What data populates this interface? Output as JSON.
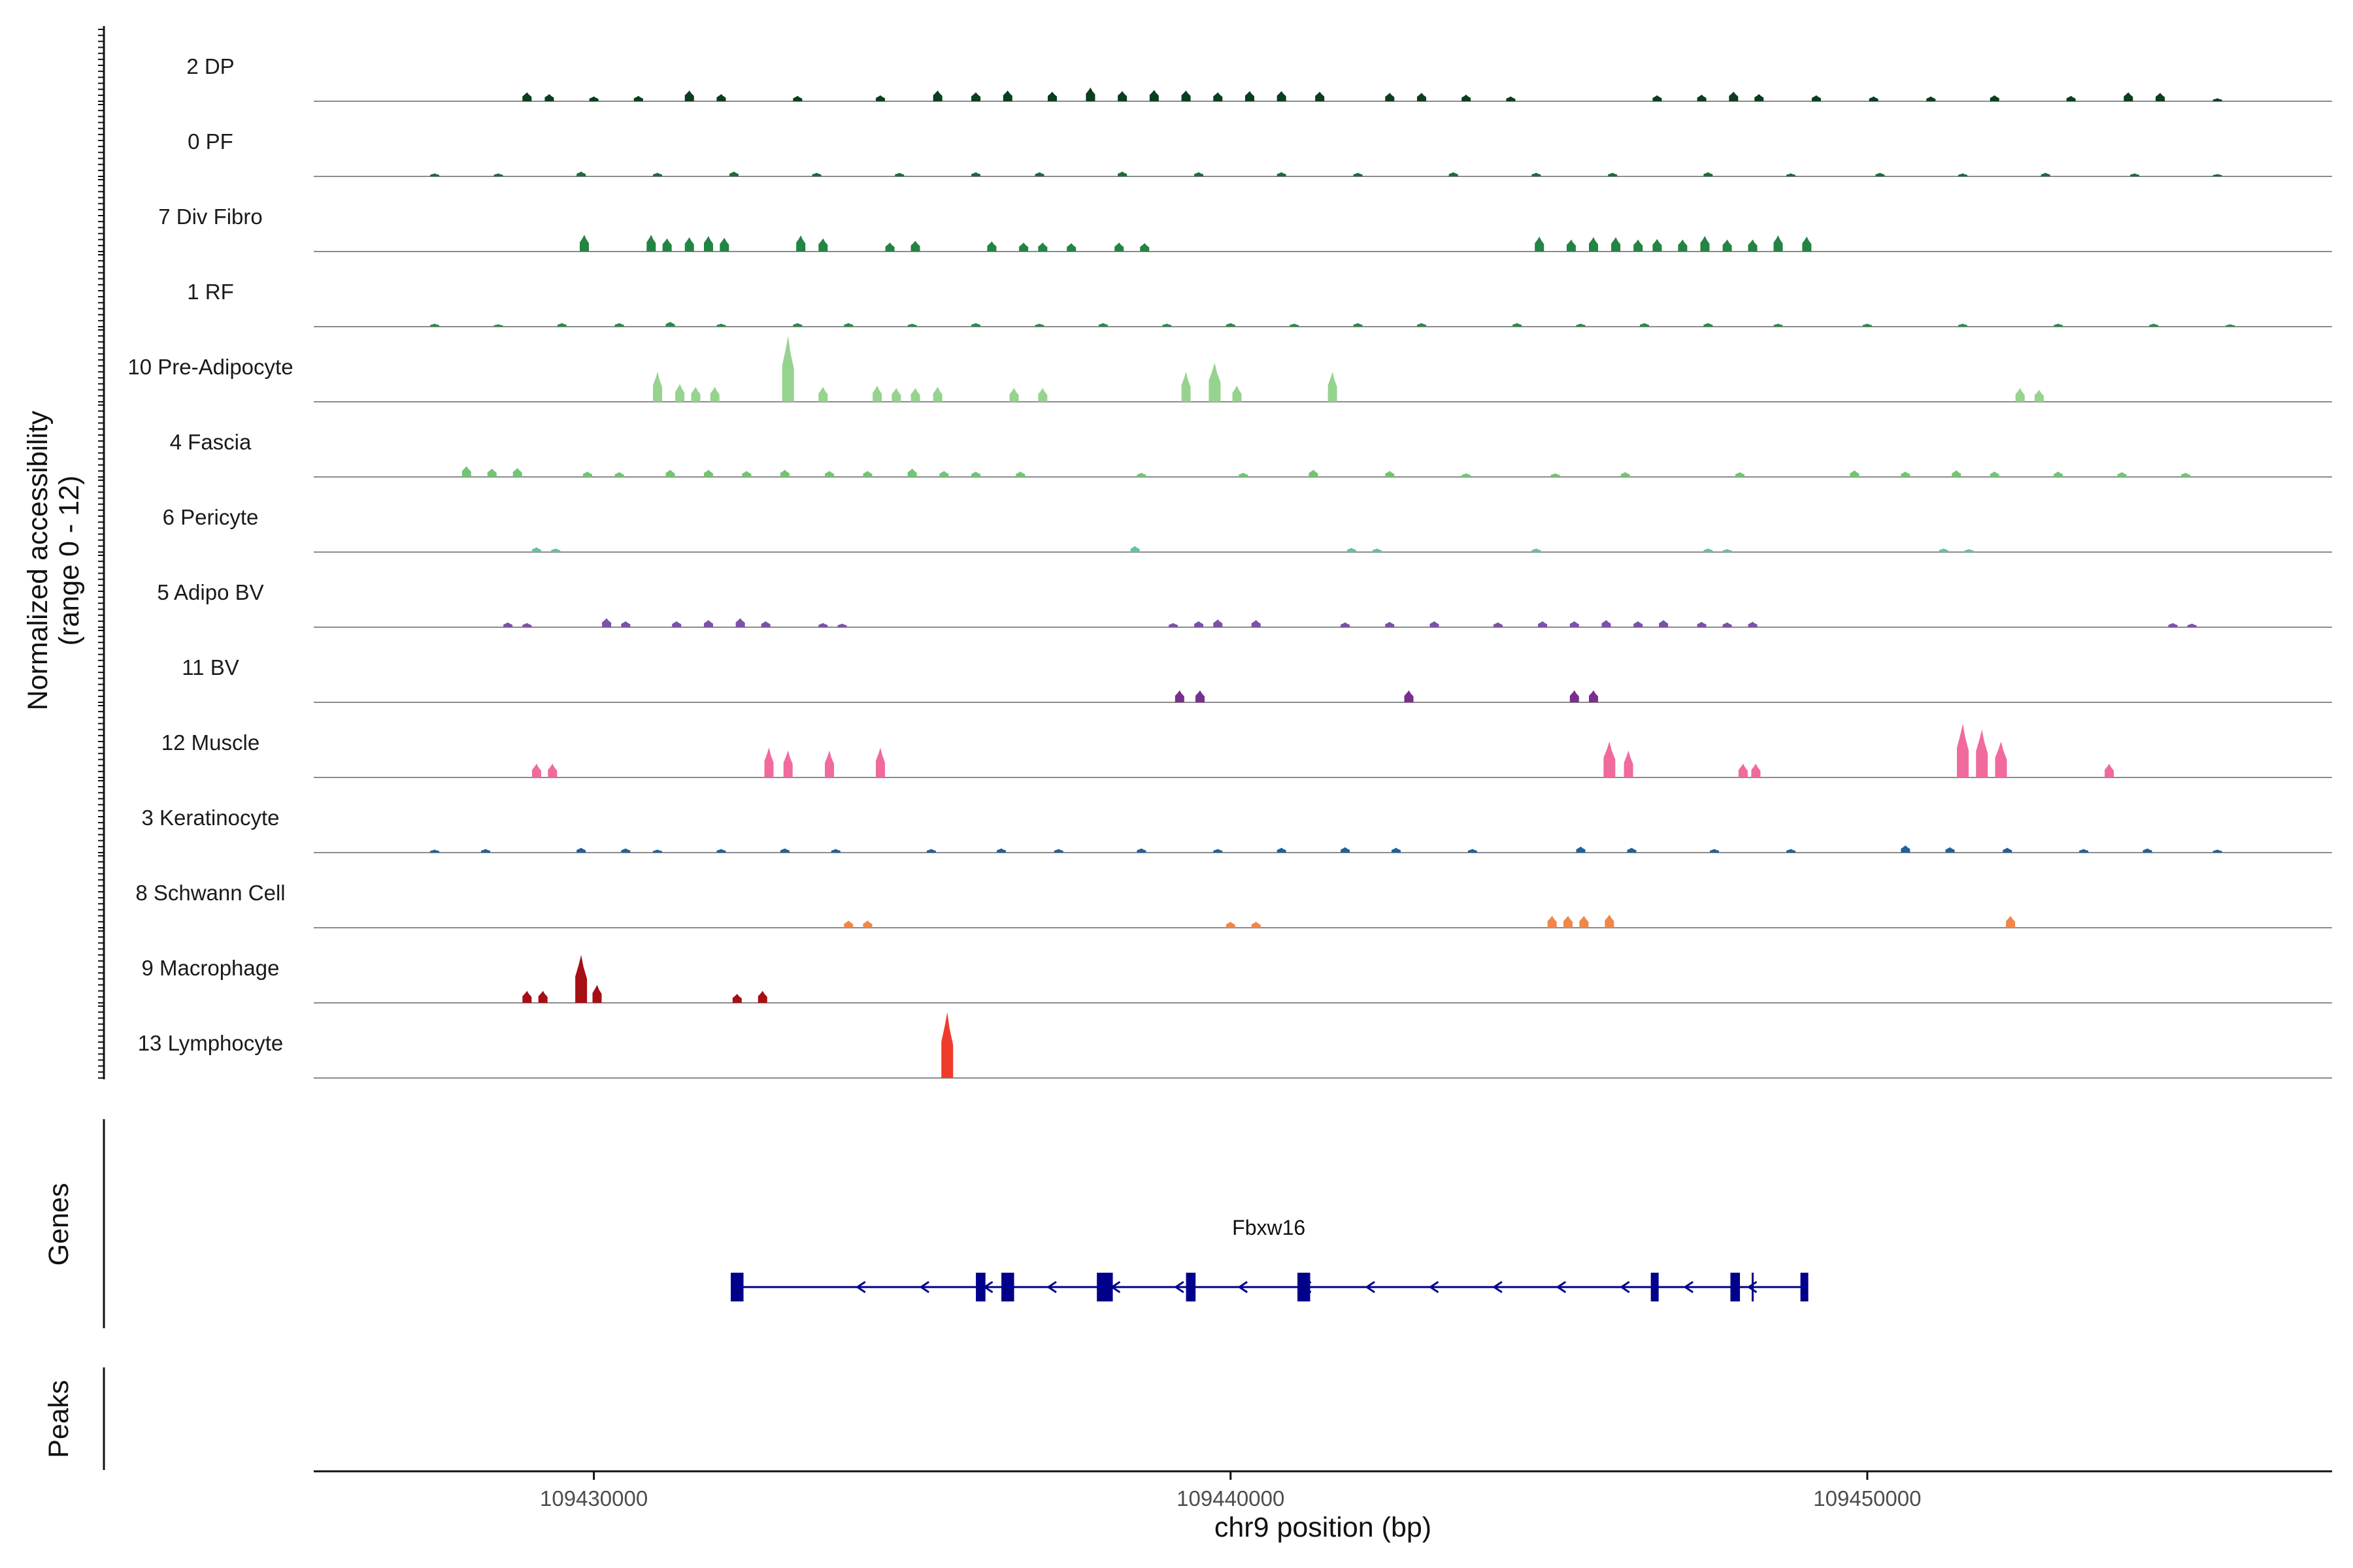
{
  "chart_data": {
    "type": "genome-track",
    "y_axis_title_line1": "Normalized accessibility",
    "y_axis_title_line2": "(range 0 - 12)",
    "ylim": [
      0,
      12
    ],
    "x_axis_title": "chr9 position (bp)",
    "xlim": [
      109425600,
      109457300
    ],
    "x_ticks": [
      109430000,
      109440000,
      109450000
    ],
    "x_tick_labels": [
      "109430000",
      "109440000",
      "109450000"
    ],
    "tracks": [
      {
        "label": "2 DP",
        "color": "#0b3d1f",
        "peaks": [
          [
            109428950,
            1.5
          ],
          [
            109429300,
            1.2
          ],
          [
            109430000,
            0.8
          ],
          [
            109430700,
            0.9
          ],
          [
            109431500,
            1.8
          ],
          [
            109432000,
            1.2
          ],
          [
            109433200,
            0.9
          ],
          [
            109434500,
            1.0
          ],
          [
            109435400,
            1.8
          ],
          [
            109436000,
            1.5
          ],
          [
            109436500,
            1.8
          ],
          [
            109437200,
            1.6
          ],
          [
            109437800,
            2.3
          ],
          [
            109438300,
            1.7
          ],
          [
            109438800,
            1.9
          ],
          [
            109439300,
            1.8
          ],
          [
            109439800,
            1.5
          ],
          [
            109440300,
            1.7
          ],
          [
            109440800,
            1.7
          ],
          [
            109441400,
            1.6
          ],
          [
            109442500,
            1.4
          ],
          [
            109443000,
            1.4
          ],
          [
            109443700,
            1.1
          ],
          [
            109444400,
            0.8
          ],
          [
            109446700,
            1.0
          ],
          [
            109447400,
            1.1
          ],
          [
            109447900,
            1.6
          ],
          [
            109448300,
            1.2
          ],
          [
            109449200,
            1.0
          ],
          [
            109450100,
            0.8
          ],
          [
            109451000,
            0.8
          ],
          [
            109452000,
            1.0
          ],
          [
            109453200,
            0.9
          ],
          [
            109454100,
            1.5
          ],
          [
            109454600,
            1.4
          ],
          [
            109455500,
            0.5
          ]
        ]
      },
      {
        "label": "0 PF",
        "color": "#1e6b3c",
        "peaks": [
          [
            109427500,
            0.5
          ],
          [
            109428500,
            0.5
          ],
          [
            109429800,
            0.8
          ],
          [
            109431000,
            0.6
          ],
          [
            109432200,
            0.8
          ],
          [
            109433500,
            0.6
          ],
          [
            109434800,
            0.6
          ],
          [
            109436000,
            0.7
          ],
          [
            109437000,
            0.7
          ],
          [
            109438300,
            0.8
          ],
          [
            109439500,
            0.7
          ],
          [
            109440800,
            0.7
          ],
          [
            109442000,
            0.6
          ],
          [
            109443500,
            0.7
          ],
          [
            109444800,
            0.6
          ],
          [
            109446000,
            0.6
          ],
          [
            109447500,
            0.7
          ],
          [
            109448800,
            0.5
          ],
          [
            109450200,
            0.6
          ],
          [
            109451500,
            0.5
          ],
          [
            109452800,
            0.6
          ],
          [
            109454200,
            0.5
          ],
          [
            109455500,
            0.4
          ]
        ]
      },
      {
        "label": "7 Div Fibro",
        "color": "#238443",
        "peaks": [
          [
            109429850,
            2.8
          ],
          [
            109430900,
            2.8
          ],
          [
            109431150,
            2.2
          ],
          [
            109431500,
            2.4
          ],
          [
            109431800,
            2.6
          ],
          [
            109432050,
            2.3
          ],
          [
            109433250,
            2.7
          ],
          [
            109433600,
            2.2
          ],
          [
            109434650,
            1.5
          ],
          [
            109435050,
            1.8
          ],
          [
            109436250,
            1.7
          ],
          [
            109436750,
            1.5
          ],
          [
            109437050,
            1.5
          ],
          [
            109437500,
            1.4
          ],
          [
            109438250,
            1.5
          ],
          [
            109438650,
            1.4
          ],
          [
            109444850,
            2.5
          ],
          [
            109445350,
            2.0
          ],
          [
            109445700,
            2.4
          ],
          [
            109446050,
            2.4
          ],
          [
            109446400,
            2.0
          ],
          [
            109446700,
            2.1
          ],
          [
            109447100,
            2.0
          ],
          [
            109447450,
            2.6
          ],
          [
            109447800,
            2.0
          ],
          [
            109448200,
            2.0
          ],
          [
            109448600,
            2.7
          ],
          [
            109449050,
            2.5
          ]
        ]
      },
      {
        "label": "1 RF",
        "color": "#2d8a4a",
        "peaks": [
          [
            109427500,
            0.5
          ],
          [
            109428500,
            0.4
          ],
          [
            109429500,
            0.6
          ],
          [
            109430400,
            0.6
          ],
          [
            109431200,
            0.8
          ],
          [
            109432000,
            0.5
          ],
          [
            109433200,
            0.6
          ],
          [
            109434000,
            0.6
          ],
          [
            109435000,
            0.5
          ],
          [
            109436000,
            0.6
          ],
          [
            109437000,
            0.5
          ],
          [
            109438000,
            0.6
          ],
          [
            109439000,
            0.5
          ],
          [
            109440000,
            0.6
          ],
          [
            109441000,
            0.5
          ],
          [
            109442000,
            0.6
          ],
          [
            109443000,
            0.6
          ],
          [
            109444500,
            0.6
          ],
          [
            109445500,
            0.5
          ],
          [
            109446500,
            0.6
          ],
          [
            109447500,
            0.6
          ],
          [
            109448600,
            0.5
          ],
          [
            109450000,
            0.5
          ],
          [
            109451500,
            0.5
          ],
          [
            109453000,
            0.5
          ],
          [
            109454500,
            0.5
          ],
          [
            109455700,
            0.4
          ]
        ]
      },
      {
        "label": "10 Pre-Adipocyte",
        "color": "#95d38e",
        "peaks": [
          [
            109431000,
            5.0
          ],
          [
            109431350,
            3.0
          ],
          [
            109431600,
            2.5
          ],
          [
            109431900,
            2.5
          ],
          [
            109433050,
            11.0
          ],
          [
            109433600,
            2.5
          ],
          [
            109434450,
            2.7
          ],
          [
            109434750,
            2.3
          ],
          [
            109435050,
            2.3
          ],
          [
            109435400,
            2.5
          ],
          [
            109436600,
            2.3
          ],
          [
            109437050,
            2.3
          ],
          [
            109439300,
            5.0
          ],
          [
            109439750,
            6.5
          ],
          [
            109440100,
            2.7
          ],
          [
            109441600,
            5.0
          ],
          [
            109452400,
            2.3
          ],
          [
            109452700,
            2.0
          ]
        ]
      },
      {
        "label": "4 Fascia",
        "color": "#74c476",
        "peaks": [
          [
            109428000,
            1.8
          ],
          [
            109428400,
            1.4
          ],
          [
            109428800,
            1.5
          ],
          [
            109429900,
            0.9
          ],
          [
            109430400,
            0.8
          ],
          [
            109431200,
            1.2
          ],
          [
            109431800,
            1.2
          ],
          [
            109432400,
            1.0
          ],
          [
            109433000,
            1.2
          ],
          [
            109433700,
            1.0
          ],
          [
            109434300,
            1.0
          ],
          [
            109435000,
            1.4
          ],
          [
            109435500,
            1.0
          ],
          [
            109436000,
            0.9
          ],
          [
            109436700,
            0.9
          ],
          [
            109438600,
            0.7
          ],
          [
            109440200,
            0.7
          ],
          [
            109441300,
            1.2
          ],
          [
            109442500,
            1.0
          ],
          [
            109443700,
            0.6
          ],
          [
            109445100,
            0.6
          ],
          [
            109446200,
            0.8
          ],
          [
            109448000,
            0.8
          ],
          [
            109449800,
            1.1
          ],
          [
            109450600,
            0.9
          ],
          [
            109451400,
            1.1
          ],
          [
            109452000,
            0.9
          ],
          [
            109453000,
            0.9
          ],
          [
            109454000,
            0.8
          ],
          [
            109455000,
            0.7
          ]
        ]
      },
      {
        "label": "6 Pericyte",
        "color": "#66c2a4",
        "peaks": [
          [
            109429100,
            0.8
          ],
          [
            109429400,
            0.6
          ],
          [
            109438500,
            1.0
          ],
          [
            109441900,
            0.7
          ],
          [
            109442300,
            0.6
          ],
          [
            109444800,
            0.6
          ],
          [
            109447500,
            0.6
          ],
          [
            109447800,
            0.5
          ],
          [
            109451200,
            0.6
          ],
          [
            109451600,
            0.5
          ]
        ]
      },
      {
        "label": "5 Adipo BV",
        "color": "#7b52a6",
        "peaks": [
          [
            109428650,
            0.8
          ],
          [
            109428950,
            0.7
          ],
          [
            109430200,
            1.5
          ],
          [
            109430500,
            1.0
          ],
          [
            109431300,
            1.0
          ],
          [
            109431800,
            1.2
          ],
          [
            109432300,
            1.5
          ],
          [
            109432700,
            1.0
          ],
          [
            109433600,
            0.7
          ],
          [
            109433900,
            0.6
          ],
          [
            109439100,
            0.7
          ],
          [
            109439500,
            1.0
          ],
          [
            109439800,
            1.3
          ],
          [
            109440400,
            1.2
          ],
          [
            109441800,
            0.8
          ],
          [
            109442500,
            0.9
          ],
          [
            109443200,
            1.0
          ],
          [
            109444200,
            0.8
          ],
          [
            109444900,
            1.0
          ],
          [
            109445400,
            1.0
          ],
          [
            109445900,
            1.2
          ],
          [
            109446400,
            1.0
          ],
          [
            109446800,
            1.2
          ],
          [
            109447400,
            0.9
          ],
          [
            109447800,
            0.8
          ],
          [
            109448200,
            0.9
          ],
          [
            109454800,
            0.7
          ],
          [
            109455100,
            0.6
          ]
        ]
      },
      {
        "label": "11 BV",
        "color": "#7a2e8e",
        "peaks": [
          [
            109439200,
            2.0
          ],
          [
            109439520,
            2.0
          ],
          [
            109442800,
            2.0
          ],
          [
            109445400,
            2.0
          ],
          [
            109445700,
            2.0
          ]
        ]
      },
      {
        "label": "12 Muscle",
        "color": "#f06a9d",
        "peaks": [
          [
            109429100,
            2.3
          ],
          [
            109429350,
            2.3
          ],
          [
            109432750,
            5.0
          ],
          [
            109433050,
            4.5
          ],
          [
            109433700,
            4.5
          ],
          [
            109434500,
            5.0
          ],
          [
            109445950,
            6.0
          ],
          [
            109446250,
            4.5
          ],
          [
            109448050,
            2.3
          ],
          [
            109448250,
            2.3
          ],
          [
            109451500,
            9.0
          ],
          [
            109451800,
            8.0
          ],
          [
            109452100,
            6.0
          ],
          [
            109453800,
            2.3
          ]
        ]
      },
      {
        "label": "3 Keratinocyte",
        "color": "#22619a",
        "peaks": [
          [
            109427500,
            0.5
          ],
          [
            109428300,
            0.6
          ],
          [
            109429800,
            0.8
          ],
          [
            109430500,
            0.7
          ],
          [
            109431000,
            0.5
          ],
          [
            109432000,
            0.6
          ],
          [
            109433000,
            0.7
          ],
          [
            109433800,
            0.6
          ],
          [
            109435300,
            0.6
          ],
          [
            109436400,
            0.7
          ],
          [
            109437300,
            0.6
          ],
          [
            109438600,
            0.7
          ],
          [
            109439800,
            0.6
          ],
          [
            109440800,
            0.8
          ],
          [
            109441800,
            0.9
          ],
          [
            109442600,
            0.8
          ],
          [
            109443800,
            0.6
          ],
          [
            109445500,
            1.0
          ],
          [
            109446300,
            0.8
          ],
          [
            109447600,
            0.6
          ],
          [
            109448800,
            0.6
          ],
          [
            109450600,
            1.2
          ],
          [
            109451300,
            0.9
          ],
          [
            109452200,
            0.8
          ],
          [
            109453400,
            0.6
          ],
          [
            109454400,
            0.7
          ],
          [
            109455500,
            0.5
          ]
        ]
      },
      {
        "label": "8 Schwann Cell",
        "color": "#f0874a",
        "peaks": [
          [
            109434000,
            1.2
          ],
          [
            109434300,
            1.2
          ],
          [
            109440000,
            1.0
          ],
          [
            109440400,
            1.0
          ],
          [
            109445050,
            2.0
          ],
          [
            109445300,
            2.0
          ],
          [
            109445550,
            2.0
          ],
          [
            109445950,
            2.2
          ],
          [
            109452250,
            2.0
          ]
        ]
      },
      {
        "label": "9 Macrophage",
        "color": "#a50f15",
        "peaks": [
          [
            109428950,
            2.0
          ],
          [
            109429200,
            2.0
          ],
          [
            109429800,
            8.0
          ],
          [
            109430050,
            3.0
          ],
          [
            109432250,
            1.5
          ],
          [
            109432650,
            2.0
          ]
        ]
      },
      {
        "label": "13 Lymphocyte",
        "color": "#ef3b2c",
        "peaks": [
          [
            109435550,
            11.0
          ]
        ]
      }
    ],
    "genes_section_label": "Genes",
    "peaks_section_label": "Peaks",
    "gene": {
      "name": "Fbxw16",
      "start": 109432200,
      "end": 109449000,
      "strand": "-",
      "color": "#00008b",
      "exons": [
        [
          109432150,
          109432350
        ],
        [
          109436000,
          109436150
        ],
        [
          109436400,
          109436600
        ],
        [
          109437900,
          109438150
        ],
        [
          109439300,
          109439450
        ],
        [
          109441050,
          109441250
        ],
        [
          109446600,
          109446700
        ],
        [
          109447850,
          109448000
        ],
        [
          109448950,
          109449050
        ]
      ],
      "extra_marks": [
        109448200
      ]
    }
  }
}
